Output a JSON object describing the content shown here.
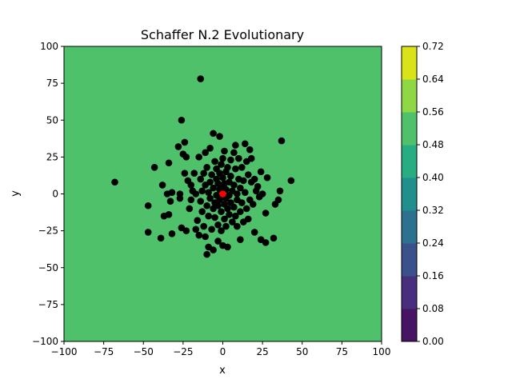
{
  "chart_data": {
    "type": "scatter",
    "title": "Schaffer N.2 Evolutionary",
    "xlabel": "x",
    "ylabel": "y",
    "xlim": [
      -100,
      100
    ],
    "ylim": [
      -100,
      100
    ],
    "x_ticks": [
      -100,
      -75,
      -50,
      -25,
      0,
      25,
      50,
      75,
      100
    ],
    "y_ticks": [
      -100,
      -75,
      -50,
      -25,
      0,
      25,
      50,
      75,
      100
    ],
    "x_tick_labels": [
      "−100",
      "−75",
      "−50",
      "−25",
      "0",
      "25",
      "50",
      "75",
      "100"
    ],
    "y_tick_labels": [
      "−100",
      "−75",
      "−50",
      "−25",
      "0",
      "25",
      "50",
      "75",
      "100"
    ],
    "background_level_color": "#4fc16b",
    "colorbar": {
      "levels": [
        0.0,
        0.08,
        0.16,
        0.24,
        0.32,
        0.4,
        0.48,
        0.56,
        0.64,
        0.72
      ],
      "tick_labels": [
        "0.00",
        "0.08",
        "0.16",
        "0.24",
        "0.32",
        "0.40",
        "0.48",
        "0.56",
        "0.64",
        "0.72"
      ],
      "colors": [
        "#471365",
        "#472f7d",
        "#3b518b",
        "#2c718e",
        "#21908d",
        "#27ad81",
        "#4fc16b",
        "#8fd744",
        "#dae319"
      ]
    },
    "series": [
      {
        "marker_color": "#000000",
        "points": [
          [
            -68,
            8
          ],
          [
            -47,
            -8
          ],
          [
            -47,
            -26
          ],
          [
            -43,
            18
          ],
          [
            -39,
            -30
          ],
          [
            -38,
            6
          ],
          [
            -37,
            -15
          ],
          [
            -35,
            0
          ],
          [
            -34,
            21
          ],
          [
            -34,
            -14
          ],
          [
            -33,
            -5
          ],
          [
            -32,
            -27
          ],
          [
            -32,
            1
          ],
          [
            -28,
            32
          ],
          [
            -27,
            -3
          ],
          [
            -27,
            0
          ],
          [
            -26,
            50
          ],
          [
            -26,
            -23
          ],
          [
            -25,
            27
          ],
          [
            -24,
            14
          ],
          [
            -24,
            35
          ],
          [
            -23,
            -25
          ],
          [
            -23,
            25
          ],
          [
            -22,
            9
          ],
          [
            -21,
            -10
          ],
          [
            -20,
            6
          ],
          [
            -20,
            -4
          ],
          [
            -19,
            2
          ],
          [
            -18,
            14
          ],
          [
            -17,
            -24
          ],
          [
            -17,
            0
          ],
          [
            -16,
            -18
          ],
          [
            -15,
            25
          ],
          [
            -15,
            -28
          ],
          [
            -14,
            78
          ],
          [
            -14,
            10
          ],
          [
            -14,
            -5
          ],
          [
            -13,
            2
          ],
          [
            -13,
            -12
          ],
          [
            -12,
            -22
          ],
          [
            -12,
            14
          ],
          [
            -11,
            28
          ],
          [
            -11,
            -29
          ],
          [
            -11,
            6
          ],
          [
            -10,
            -41
          ],
          [
            -10,
            -8
          ],
          [
            -10,
            18
          ],
          [
            -9,
            -36
          ],
          [
            -9,
            1
          ],
          [
            -9,
            -15
          ],
          [
            -8,
            31
          ],
          [
            -8,
            8
          ],
          [
            -8,
            -3
          ],
          [
            -7,
            -24
          ],
          [
            -7,
            13
          ],
          [
            -6,
            -38
          ],
          [
            -6,
            41
          ],
          [
            -6,
            -10
          ],
          [
            -6,
            4
          ],
          [
            -5,
            22
          ],
          [
            -5,
            -6
          ],
          [
            -5,
            -16
          ],
          [
            -4,
            10
          ],
          [
            -4,
            -1
          ],
          [
            -4,
            17
          ],
          [
            -3,
            -32
          ],
          [
            -3,
            -21
          ],
          [
            -3,
            7
          ],
          [
            -3,
            -8
          ],
          [
            -2,
            39
          ],
          [
            -2,
            3
          ],
          [
            -2,
            -4
          ],
          [
            -2,
            14
          ],
          [
            -1,
            -12
          ],
          [
            -1,
            -25
          ],
          [
            -1,
            5
          ],
          [
            -1,
            20
          ],
          [
            0,
            -35
          ],
          [
            0,
            11
          ],
          [
            0,
            -2
          ],
          [
            0,
            24
          ],
          [
            1,
            7
          ],
          [
            1,
            -17
          ],
          [
            1,
            29
          ],
          [
            1,
            -7
          ],
          [
            2,
            -3
          ],
          [
            2,
            15
          ],
          [
            2,
            -22
          ],
          [
            2,
            3
          ],
          [
            3,
            18
          ],
          [
            3,
            -10
          ],
          [
            3,
            -36
          ],
          [
            4,
            -1
          ],
          [
            4,
            8
          ],
          [
            4,
            -14
          ],
          [
            5,
            23
          ],
          [
            5,
            -6
          ],
          [
            5,
            12
          ],
          [
            6,
            -19
          ],
          [
            6,
            2
          ],
          [
            7,
            28
          ],
          [
            7,
            -9
          ],
          [
            7,
            6
          ],
          [
            8,
            17
          ],
          [
            8,
            -15
          ],
          [
            8,
            33
          ],
          [
            9,
            0
          ],
          [
            9,
            -4
          ],
          [
            9,
            -22
          ],
          [
            10,
            10
          ],
          [
            10,
            24
          ],
          [
            11,
            -12
          ],
          [
            11,
            4
          ],
          [
            11,
            -31
          ],
          [
            12,
            18
          ],
          [
            12,
            -6
          ],
          [
            13,
            9
          ],
          [
            13,
            -19
          ],
          [
            14,
            34
          ],
          [
            14,
            1
          ],
          [
            15,
            22
          ],
          [
            15,
            -10
          ],
          [
            16,
            -17
          ],
          [
            16,
            13
          ],
          [
            17,
            30
          ],
          [
            17,
            -4
          ],
          [
            18,
            8
          ],
          [
            18,
            24
          ],
          [
            19,
            -7
          ],
          [
            20,
            10
          ],
          [
            20,
            -26
          ],
          [
            21,
            2
          ],
          [
            22,
            5
          ],
          [
            23,
            -2
          ],
          [
            24,
            15
          ],
          [
            24,
            -31
          ],
          [
            25,
            0
          ],
          [
            27,
            -13
          ],
          [
            27,
            -33
          ],
          [
            28,
            11
          ],
          [
            32,
            -30
          ],
          [
            33,
            -7
          ],
          [
            35,
            -4
          ],
          [
            36,
            2
          ],
          [
            37,
            36
          ],
          [
            43,
            9
          ]
        ]
      },
      {
        "marker_color": "#ff0000",
        "points": [
          [
            0,
            0
          ]
        ]
      }
    ]
  }
}
